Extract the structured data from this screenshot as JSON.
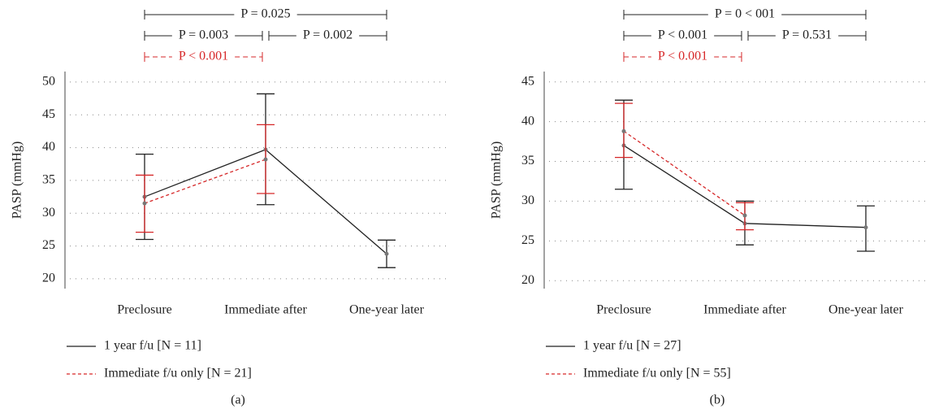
{
  "chart_data": [
    {
      "type": "line",
      "label": "(a)",
      "ylabel": "PASP (mmHg)",
      "categories": [
        "Preclosure",
        "Immediate after",
        "One-year later"
      ],
      "ylim": [
        18.5,
        51.6
      ],
      "yticks": [
        20,
        25,
        30,
        35,
        40,
        45,
        50
      ],
      "grid": true,
      "series": [
        {
          "name": "1 year f/u [N = 11]",
          "color": "#222222",
          "dash": false,
          "values": [
            32.5,
            39.7,
            23.8
          ],
          "lower": [
            26,
            31.3,
            21.7
          ],
          "upper": [
            39,
            48.2,
            25.9
          ]
        },
        {
          "name": "Immediate f/u only [N = 21]",
          "color": "#d62728",
          "dash": true,
          "values": [
            31.5,
            38.2,
            null
          ],
          "lower": [
            27.1,
            33,
            null
          ],
          "upper": [
            35.8,
            43.5,
            null
          ]
        }
      ],
      "annotations": [
        {
          "text": "P = 0.025",
          "from": "Preclosure",
          "to": "One-year later",
          "color": "#222222",
          "dash": false
        },
        {
          "text": "P = 0.003",
          "from": "Preclosure",
          "to": "Immediate after",
          "color": "#222222",
          "dash": false
        },
        {
          "text": "P = 0.002",
          "from": "Immediate after",
          "to": "One-year later",
          "color": "#222222",
          "dash": false
        },
        {
          "text": "P < 0.001",
          "from": "Preclosure",
          "to": "Immediate after",
          "color": "#d62728",
          "dash": true
        }
      ]
    },
    {
      "type": "line",
      "label": "(b)",
      "ylabel": "PASP (mmHg)",
      "categories": [
        "Preclosure",
        "Immediate after",
        "One-year later"
      ],
      "ylim": [
        19,
        46.3
      ],
      "yticks": [
        20,
        25,
        30,
        35,
        40,
        45
      ],
      "grid": true,
      "series": [
        {
          "name": "1 year f/u [N = 27]",
          "color": "#222222",
          "dash": false,
          "values": [
            37,
            27.2,
            26.7
          ],
          "lower": [
            31.5,
            24.5,
            23.7
          ],
          "upper": [
            42.7,
            30,
            29.4
          ]
        },
        {
          "name": "Immediate f/u only [N = 55]",
          "color": "#d62728",
          "dash": true,
          "values": [
            38.8,
            28.2,
            null
          ],
          "lower": [
            35.5,
            26.4,
            null
          ],
          "upper": [
            42.3,
            29.8,
            null
          ]
        }
      ],
      "annotations": [
        {
          "text": "P = 0 < 001",
          "from": "Preclosure",
          "to": "One-year later",
          "color": "#222222",
          "dash": false
        },
        {
          "text": "P < 0.001",
          "from": "Preclosure",
          "to": "Immediate after",
          "color": "#222222",
          "dash": false
        },
        {
          "text": "P = 0.531",
          "from": "Immediate after",
          "to": "One-year later",
          "color": "#222222",
          "dash": false
        },
        {
          "text": "P < 0.001",
          "from": "Preclosure",
          "to": "Immediate after",
          "color": "#d62728",
          "dash": true
        }
      ]
    }
  ]
}
